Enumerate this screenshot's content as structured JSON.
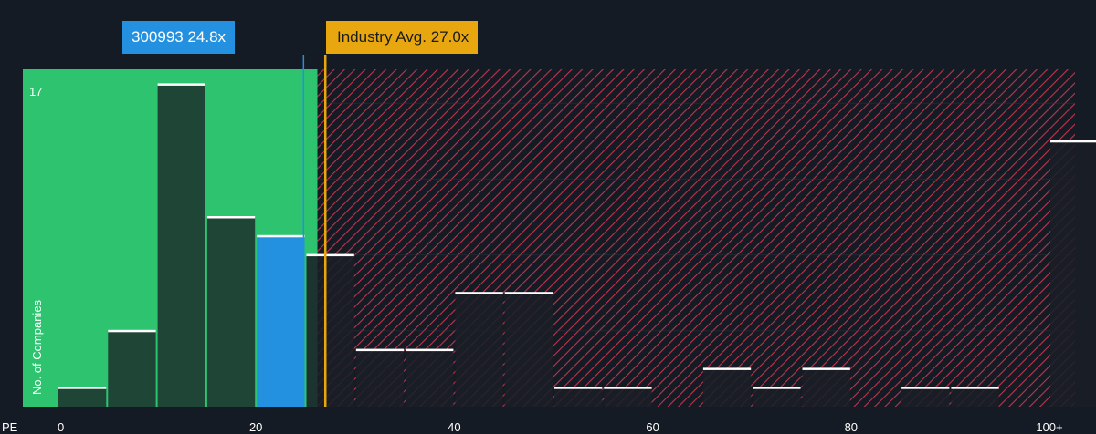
{
  "chart_data": {
    "type": "bar",
    "x_axis_label": "PE",
    "y_axis_label": "No. of Companies",
    "y_max_label": "17",
    "ylim": [
      0,
      17.5
    ],
    "x_ticks": [
      "0",
      "20",
      "40",
      "60",
      "80",
      "100+"
    ],
    "bins": [
      {
        "from": 0,
        "to": 5,
        "count": 1
      },
      {
        "from": 5,
        "to": 10,
        "count": 4
      },
      {
        "from": 10,
        "to": 15,
        "count": 17
      },
      {
        "from": 15,
        "to": 20,
        "count": 10
      },
      {
        "from": 20,
        "to": 25,
        "count": 9
      },
      {
        "from": 25,
        "to": 30,
        "count": 8
      },
      {
        "from": 30,
        "to": 35,
        "count": 3
      },
      {
        "from": 35,
        "to": 40,
        "count": 3
      },
      {
        "from": 40,
        "to": 45,
        "count": 6
      },
      {
        "from": 45,
        "to": 50,
        "count": 6
      },
      {
        "from": 50,
        "to": 55,
        "count": 1
      },
      {
        "from": 55,
        "to": 60,
        "count": 1
      },
      {
        "from": 60,
        "to": 65,
        "count": 0
      },
      {
        "from": 65,
        "to": 70,
        "count": 2
      },
      {
        "from": 70,
        "to": 75,
        "count": 1
      },
      {
        "from": 75,
        "to": 80,
        "count": 2
      },
      {
        "from": 80,
        "to": 85,
        "count": 0
      },
      {
        "from": 85,
        "to": 90,
        "count": 1
      },
      {
        "from": 90,
        "to": 95,
        "count": 1
      },
      {
        "from": 95,
        "to": 100,
        "count": 0
      },
      {
        "from": 100,
        "to": 105,
        "count": 14
      }
    ],
    "company": {
      "label": "300993 24.8x",
      "pe": 24.8,
      "highlight_bin_from": 20,
      "color": "#2391e0"
    },
    "industry": {
      "label": "Industry Avg. 27.0x",
      "pe": 27.0,
      "color": "#e8a70f"
    },
    "fair_zone_end_pe": 26.2,
    "colors": {
      "background": "#151b24",
      "fair_zone": "#2ec46f",
      "bar_in_fair_zone": "#1e4536",
      "bar_in_overvalued": "#1a1f27",
      "overvalued_hatch": "#c0344a",
      "bar_top": "#ffffff",
      "gridline": "#2b333e"
    },
    "grid": true
  }
}
